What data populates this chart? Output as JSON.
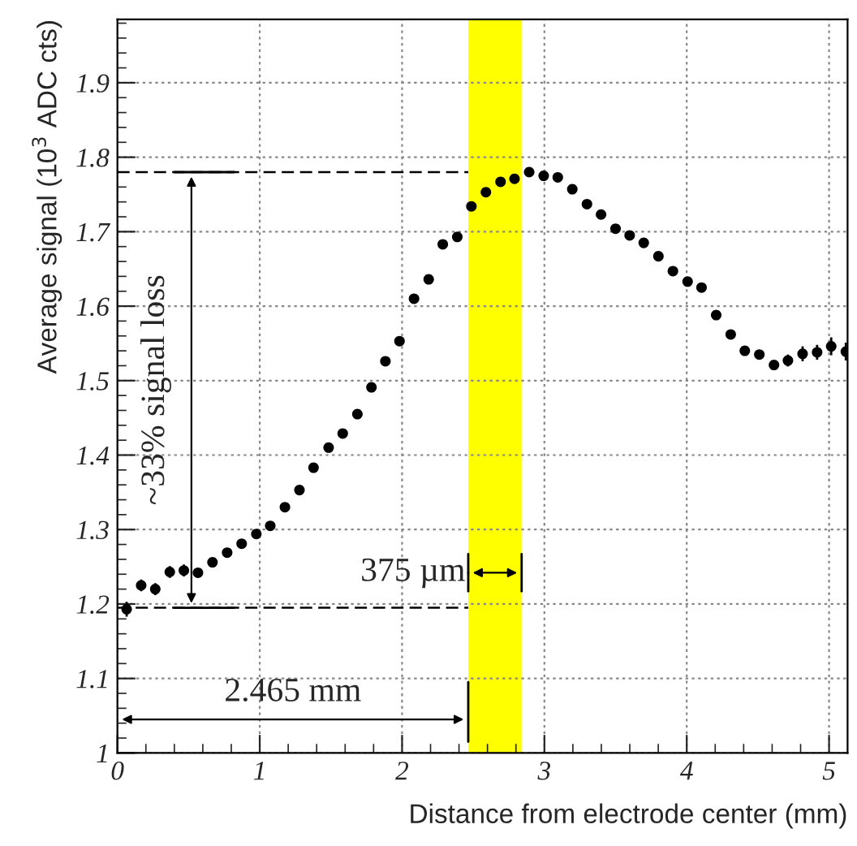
{
  "chart_data": {
    "type": "scatter",
    "xlabel": "Distance from electrode center (mm)",
    "ylabel": "Average signal (10$^{3}$ ADC cts)",
    "x": [
      0.065,
      0.167,
      0.266,
      0.368,
      0.467,
      0.566,
      0.668,
      0.771,
      0.873,
      0.976,
      1.074,
      1.177,
      1.279,
      1.378,
      1.484,
      1.583,
      1.686,
      1.785,
      1.883,
      1.982,
      2.084,
      2.187,
      2.286,
      2.388,
      2.487,
      2.589,
      2.692,
      2.79,
      2.893,
      2.995,
      3.094,
      3.196,
      3.299,
      3.398,
      3.5,
      3.599,
      3.698,
      3.801,
      3.903,
      4.006,
      4.104,
      4.207,
      4.309,
      4.408,
      4.51,
      4.613,
      4.711,
      4.814,
      4.916,
      5.015,
      5.118
    ],
    "series": [
      {
        "color": "#000000",
        "values": [
          1.193,
          1.225,
          1.22,
          1.243,
          1.245,
          1.242,
          1.256,
          1.269,
          1.281,
          1.294,
          1.305,
          1.33,
          1.353,
          1.383,
          1.41,
          1.429,
          1.455,
          1.491,
          1.526,
          1.553,
          1.61,
          1.636,
          1.683,
          1.693,
          1.734,
          1.753,
          1.767,
          1.771,
          1.78,
          1.775,
          1.773,
          1.757,
          1.737,
          1.723,
          1.704,
          1.695,
          1.685,
          1.667,
          1.647,
          1.633,
          1.625,
          1.588,
          1.562,
          1.54,
          1.535,
          1.521,
          1.527,
          1.536,
          1.538,
          1.546,
          1.539
        ],
        "errors": [
          0.01,
          0.008,
          0.008,
          0.008,
          0.008,
          0.006,
          null,
          null,
          null,
          null,
          null,
          null,
          null,
          null,
          null,
          null,
          null,
          null,
          null,
          null,
          null,
          null,
          null,
          null,
          null,
          null,
          null,
          null,
          null,
          null,
          null,
          null,
          null,
          null,
          null,
          null,
          null,
          null,
          null,
          null,
          null,
          null,
          null,
          null,
          null,
          0.006,
          0.008,
          0.01,
          0.01,
          0.012,
          0.012
        ]
      }
    ],
    "xlim": [
      0,
      5.13
    ],
    "ylim": [
      1,
      1.985
    ],
    "xticks": [
      0,
      1,
      2,
      3,
      4,
      5
    ],
    "yticks": [
      1,
      1.1,
      1.2,
      1.3,
      1.4,
      1.5,
      1.6,
      1.7,
      1.8,
      1.9
    ],
    "grid": true,
    "marker": "circle",
    "legend": false,
    "bands": [
      {
        "axis": "x",
        "from": 2.465,
        "to": 2.84,
        "color": "#ffff00",
        "label": null
      }
    ],
    "ref_lines": [
      {
        "axis": "y",
        "value": 1.78,
        "label": null,
        "line_style": "dashed",
        "color": "#000000"
      },
      {
        "axis": "y",
        "value": 1.195,
        "label": null,
        "line_style": "dashed",
        "color": "#000000"
      }
    ],
    "annotations": [
      "~33% signal loss",
      "375 µm",
      "2.465 mm"
    ]
  }
}
